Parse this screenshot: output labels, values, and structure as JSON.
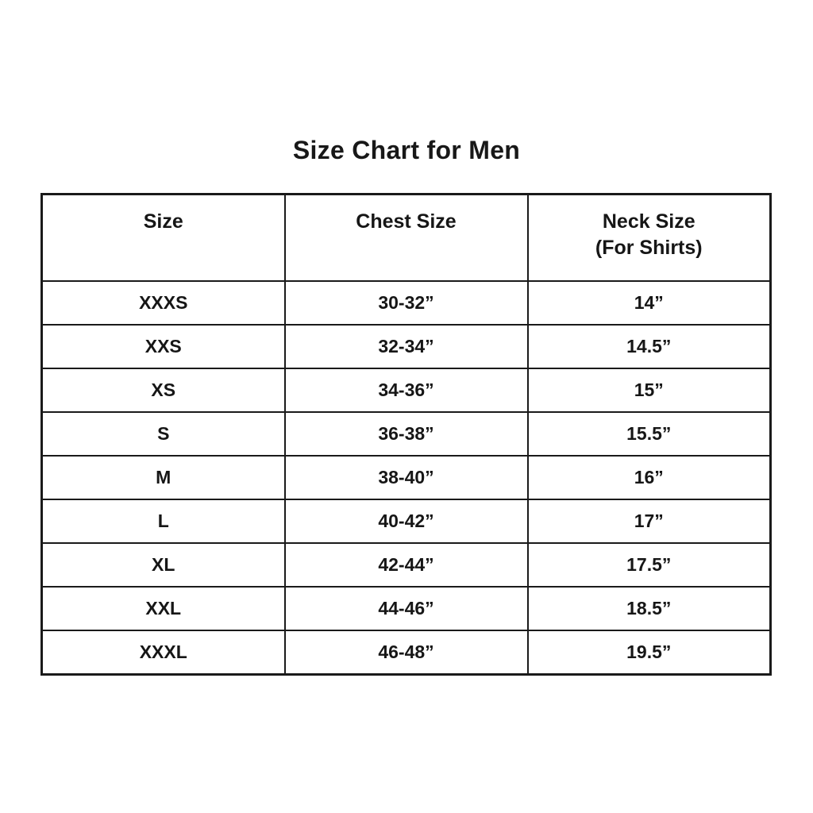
{
  "title": "Size Chart for Men",
  "table": {
    "headers": {
      "size": "Size",
      "chest": "Chest Size",
      "neck_line1": "Neck Size",
      "neck_line2": "(For Shirts)"
    },
    "rows": [
      {
        "size": "XXXS",
        "chest": "30-32”",
        "neck": "14”"
      },
      {
        "size": "XXS",
        "chest": "32-34”",
        "neck": "14.5”"
      },
      {
        "size": "XS",
        "chest": "34-36”",
        "neck": "15”"
      },
      {
        "size": "S",
        "chest": "36-38”",
        "neck": "15.5”"
      },
      {
        "size": "M",
        "chest": "38-40”",
        "neck": "16”"
      },
      {
        "size": "L",
        "chest": "40-42”",
        "neck": "17”"
      },
      {
        "size": "XL",
        "chest": "42-44”",
        "neck": "17.5”"
      },
      {
        "size": "XXL",
        "chest": "44-46”",
        "neck": "18.5”"
      },
      {
        "size": "XXXL",
        "chest": "46-48”",
        "neck": "19.5”"
      }
    ]
  },
  "colors": {
    "background": "#ffffff",
    "border": "#1a1a1a",
    "text": "#161616"
  },
  "chart_data": {
    "type": "table",
    "title": "Size Chart for Men",
    "columns": [
      "Size",
      "Chest Size",
      "Neck Size (For Shirts)"
    ],
    "rows": [
      [
        "XXXS",
        "30-32”",
        "14”"
      ],
      [
        "XXS",
        "32-34”",
        "14.5”"
      ],
      [
        "XS",
        "34-36”",
        "15”"
      ],
      [
        "S",
        "36-38”",
        "15.5”"
      ],
      [
        "M",
        "38-40”",
        "16”"
      ],
      [
        "L",
        "40-42”",
        "17”"
      ],
      [
        "XL",
        "42-44”",
        "17.5”"
      ],
      [
        "XXL",
        "44-46”",
        "18.5”"
      ],
      [
        "XXXL",
        "46-48”",
        "19.5”"
      ]
    ],
    "layout": {
      "grid": true,
      "text_weight": "bold",
      "alignment": "center"
    }
  }
}
